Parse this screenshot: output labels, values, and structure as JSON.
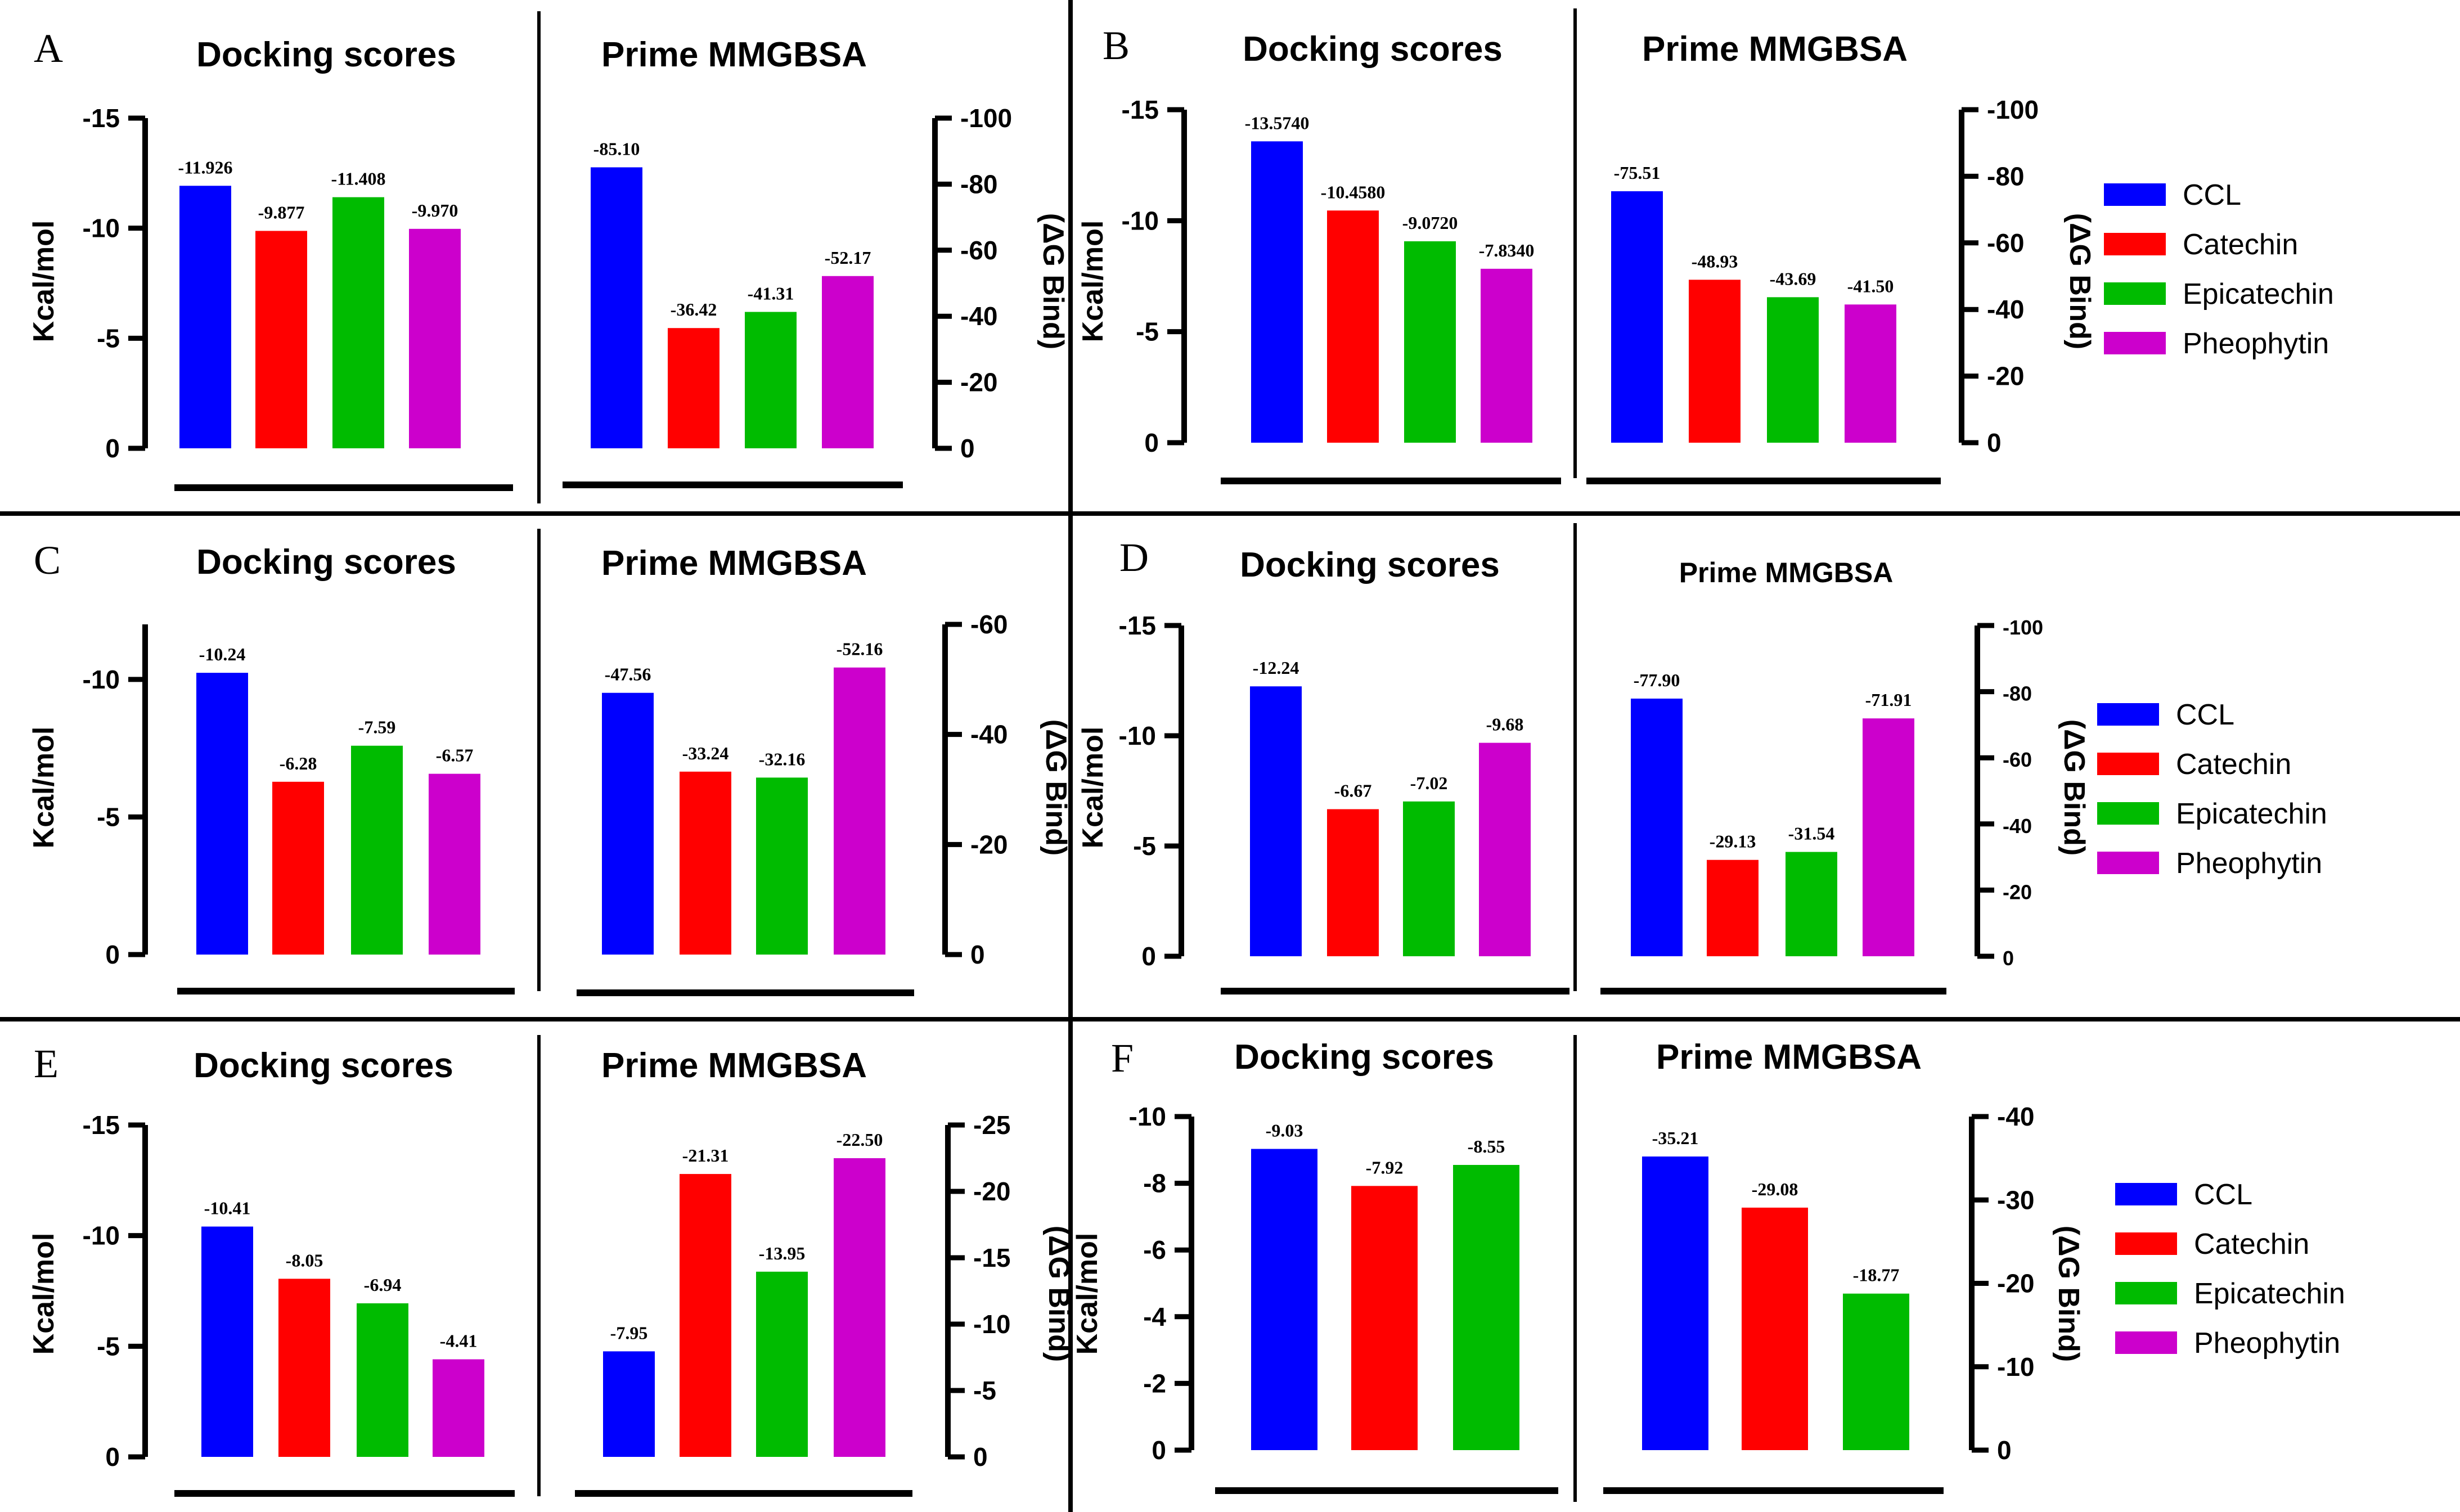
{
  "colors": {
    "CCL": "#0000ff",
    "Catechin": "#ff0000",
    "Epicatechin": "#00bb00",
    "Pheophytin": "#cc00cc"
  },
  "legend_entries": [
    "CCL",
    "Catechin",
    "Epicatechin",
    "Pheophytin"
  ],
  "chart_data": [
    {
      "panel": "A",
      "type": "bar",
      "docking": {
        "title": "Docking scores",
        "ylabel": "Kcal/mol",
        "ylim": [
          0,
          -15
        ],
        "yticks": [
          0,
          -5,
          -10,
          -15
        ],
        "ytick_labels": [
          "0",
          "-5",
          "-10",
          "-15"
        ],
        "categories": [
          "CCL",
          "Catechin",
          "Epicatechin",
          "Pheophytin"
        ],
        "values": [
          -11.926,
          -9.877,
          -11.408,
          -9.97
        ],
        "labels": [
          "-11.926",
          "-9.877",
          "-11.408",
          "-9.970"
        ]
      },
      "mmgbsa": {
        "title": "Prime MMGBSA",
        "ylabel": "(ΔG Bind)",
        "ylim": [
          0,
          -100
        ],
        "yticks": [
          0,
          -20,
          -40,
          -60,
          -80,
          -100
        ],
        "ytick_labels": [
          "0",
          "-20",
          "-40",
          "-60",
          "-80",
          "-100"
        ],
        "categories": [
          "CCL",
          "Catechin",
          "Epicatechin",
          "Pheophytin"
        ],
        "values": [
          -85.1,
          -36.42,
          -41.31,
          -52.17
        ],
        "labels": [
          "-85.10",
          "-36.42",
          "-41.31",
          "-52.17"
        ]
      }
    },
    {
      "panel": "B",
      "type": "bar",
      "docking": {
        "title": "Docking scores",
        "ylabel": "Kcal/mol",
        "ylim": [
          0,
          -15
        ],
        "yticks": [
          0,
          -5,
          -10,
          -15
        ],
        "ytick_labels": [
          "0",
          "-5",
          "-10",
          "-15"
        ],
        "categories": [
          "CCL",
          "Catechin",
          "Epicatechin",
          "Pheophytin"
        ],
        "values": [
          -13.574,
          -10.458,
          -9.072,
          -7.834
        ],
        "labels": [
          "-13.5740",
          "-10.4580",
          "-9.0720",
          "-7.8340"
        ]
      },
      "mmgbsa": {
        "title": "Prime MMGBSA",
        "ylabel": "(ΔG Bind)",
        "ylim": [
          0,
          -100
        ],
        "yticks": [
          0,
          -20,
          -40,
          -60,
          -80,
          -100
        ],
        "ytick_labels": [
          "0",
          "-20",
          "-40",
          "-60",
          "-80",
          "-100"
        ],
        "categories": [
          "CCL",
          "Catechin",
          "Epicatechin",
          "Pheophytin"
        ],
        "values": [
          -75.51,
          -48.93,
          -43.69,
          -41.5
        ],
        "labels": [
          "-75.51",
          "-48.93",
          "-43.69",
          "-41.50"
        ]
      }
    },
    {
      "panel": "C",
      "type": "bar",
      "docking": {
        "title": "Docking scores",
        "ylabel": "Kcal/mol",
        "ylim": [
          0,
          -12
        ],
        "yticks": [
          0,
          -5,
          -10
        ],
        "ytick_labels": [
          "0",
          "-5",
          "-10"
        ],
        "categories": [
          "CCL",
          "Catechin",
          "Epicatechin",
          "Pheophytin"
        ],
        "values": [
          -10.24,
          -6.28,
          -7.59,
          -6.57
        ],
        "labels": [
          "-10.24",
          "-6.28",
          "-7.59",
          "-6.57"
        ]
      },
      "mmgbsa": {
        "title": "Prime MMGBSA",
        "ylabel": "(ΔG Bind)",
        "ylim": [
          0,
          -60
        ],
        "yticks": [
          0,
          -20,
          -40,
          -60
        ],
        "ytick_labels": [
          "0",
          "-20",
          "-40",
          "-60"
        ],
        "categories": [
          "CCL",
          "Catechin",
          "Epicatechin",
          "Pheophytin"
        ],
        "values": [
          -47.56,
          -33.24,
          -32.16,
          -52.16
        ],
        "labels": [
          "-47.56",
          "-33.24",
          "-32.16",
          "-52.16"
        ]
      }
    },
    {
      "panel": "D",
      "type": "bar",
      "docking": {
        "title": "Docking scores",
        "ylabel": "Kcal/mol",
        "ylim": [
          0,
          -15
        ],
        "yticks": [
          0,
          -5,
          -10,
          -15
        ],
        "ytick_labels": [
          "0",
          "-5",
          "-10",
          "-15"
        ],
        "categories": [
          "CCL",
          "Catechin",
          "Epicatechin",
          "Pheophytin"
        ],
        "values": [
          -12.24,
          -6.67,
          -7.02,
          -9.68
        ],
        "labels": [
          "-12.24",
          "-6.67",
          "-7.02",
          "-9.68"
        ]
      },
      "mmgbsa": {
        "title": "Prime MMGBSA",
        "ylabel": "(ΔG Bind)",
        "ylim": [
          0,
          -100
        ],
        "yticks": [
          0,
          -20,
          -40,
          -60,
          -80,
          -100
        ],
        "ytick_labels": [
          "0",
          "-20",
          "-40",
          "-60",
          "-80",
          "-100"
        ],
        "categories": [
          "CCL",
          "Catechin",
          "Epicatechin",
          "Pheophytin"
        ],
        "values": [
          -77.9,
          -29.13,
          -31.54,
          -71.91
        ],
        "labels": [
          "-77.90",
          "-29.13",
          "-31.54",
          "-71.91"
        ]
      }
    },
    {
      "panel": "E",
      "type": "bar",
      "docking": {
        "title": "Docking scores",
        "ylabel": "Kcal/mol",
        "ylim": [
          0,
          -15
        ],
        "yticks": [
          0,
          -5,
          -10,
          -15
        ],
        "ytick_labels": [
          "0",
          "-5",
          "-10",
          "-15"
        ],
        "categories": [
          "CCL",
          "Catechin",
          "Epicatechin",
          "Pheophytin"
        ],
        "values": [
          -10.41,
          -8.05,
          -6.94,
          -4.41
        ],
        "labels": [
          "-10.41",
          "-8.05",
          "-6.94",
          "-4.41"
        ]
      },
      "mmgbsa": {
        "title": "Prime MMGBSA",
        "ylabel": "(ΔG Bind)",
        "ylim": [
          0,
          -25
        ],
        "yticks": [
          0,
          -5,
          -10,
          -15,
          -20,
          -25
        ],
        "ytick_labels": [
          "0",
          "-5",
          "-10",
          "-15",
          "-20",
          "-25"
        ],
        "categories": [
          "CCL",
          "Catechin",
          "Epicatechin",
          "Pheophytin"
        ],
        "values": [
          -7.95,
          -21.31,
          -13.95,
          -22.5
        ],
        "labels": [
          "-7.95",
          "-21.31",
          "-13.95",
          "-22.50"
        ]
      }
    },
    {
      "panel": "F",
      "type": "bar",
      "docking": {
        "title": "Docking scores",
        "ylabel": "Kcal/mol",
        "ylim": [
          0,
          -10
        ],
        "yticks": [
          0,
          -2,
          -4,
          -6,
          -8,
          -10
        ],
        "ytick_labels": [
          "0",
          "-2",
          "-4",
          "-6",
          "-8",
          "-10"
        ],
        "categories": [
          "CCL",
          "Catechin",
          "Epicatechin"
        ],
        "values": [
          -9.03,
          -7.92,
          -8.55
        ],
        "labels": [
          "-9.03",
          "-7.92",
          "-8.55"
        ]
      },
      "mmgbsa": {
        "title": "Prime MMGBSA",
        "ylabel": "(ΔG Bind)",
        "ylim": [
          0,
          -40
        ],
        "yticks": [
          0,
          -10,
          -20,
          -30,
          -40
        ],
        "ytick_labels": [
          "0",
          "-10",
          "-20",
          "-30",
          "-40"
        ],
        "categories": [
          "CCL",
          "Catechin",
          "Epicatechin"
        ],
        "values": [
          -35.21,
          -29.08,
          -18.77
        ],
        "labels": [
          "-35.21",
          "-29.08",
          "-18.77"
        ]
      }
    }
  ]
}
